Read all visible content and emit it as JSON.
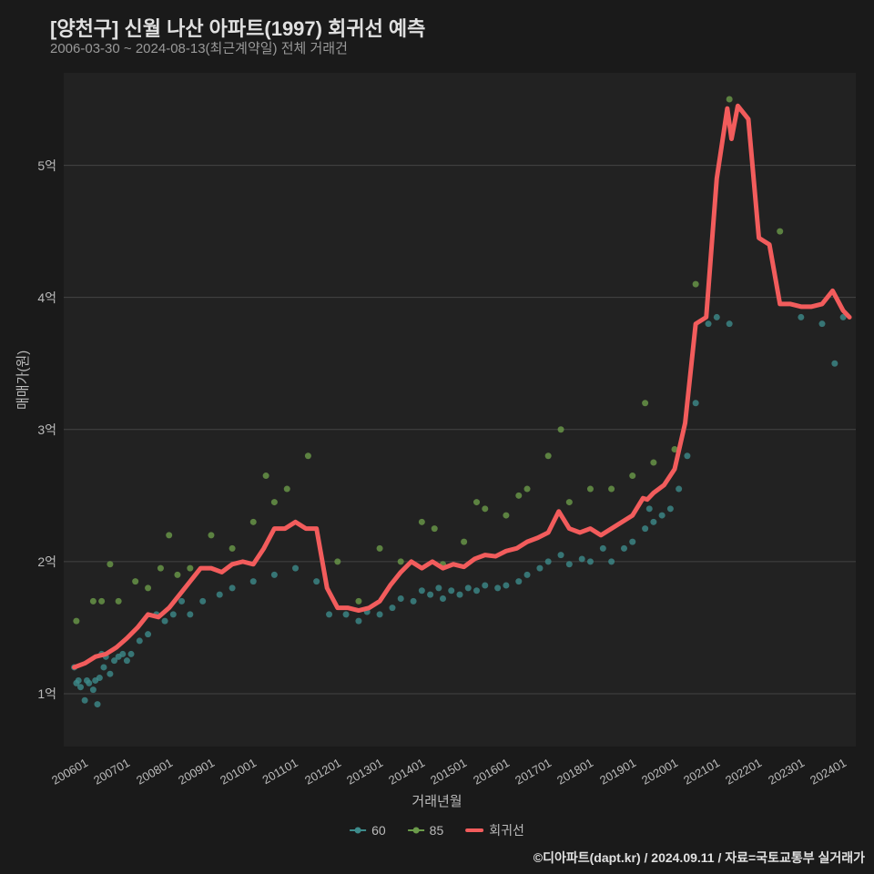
{
  "title": "[양천구] 신월 나산 아파트(1997) 회귀선 예측",
  "subtitle": "2006-03-30 ~ 2024-08-13(최근계약일) 전체 거래건",
  "y_axis_label": "매매가(원)",
  "x_axis_label": "거래년월",
  "credit": "©디아파트(dapt.kr) / 2024.09.11 / 자료=국토교통부 실거래가",
  "chart": {
    "type": "scatter+line",
    "background_color": "#222222",
    "page_background": "#1a1a1a",
    "grid_color": "#444444",
    "text_color": "#bbbbbb",
    "title_fontsize": 22,
    "subtitle_fontsize": 15,
    "label_fontsize": 15,
    "tick_fontsize": 14,
    "x_domain": [
      2006.0,
      2024.8
    ],
    "y_domain": [
      0.6,
      5.7
    ],
    "y_ticks": [
      1,
      2,
      3,
      4,
      5
    ],
    "y_tick_labels": [
      "1억",
      "2억",
      "3억",
      "4억",
      "5억"
    ],
    "x_ticks": [
      2006.0,
      2007.0,
      2008.0,
      2009.0,
      2010.0,
      2011.0,
      2012.0,
      2013.0,
      2014.0,
      2015.0,
      2016.0,
      2017.0,
      2018.0,
      2019.0,
      2020.0,
      2021.0,
      2022.0,
      2023.0,
      2024.0
    ],
    "x_tick_labels": [
      "200601",
      "200701",
      "200801",
      "200901",
      "201001",
      "201101",
      "201201",
      "201301",
      "201401",
      "201501",
      "201601",
      "201701",
      "201801",
      "201901",
      "202001",
      "202101",
      "202201",
      "202301",
      "202401"
    ],
    "series": [
      {
        "name": "60",
        "type": "scatter",
        "color": "#3d8b8b",
        "marker_size": 5,
        "opacity": 0.8,
        "points": [
          [
            2006.25,
            1.2
          ],
          [
            2006.3,
            1.08
          ],
          [
            2006.35,
            1.1
          ],
          [
            2006.4,
            1.05
          ],
          [
            2006.5,
            0.95
          ],
          [
            2006.55,
            1.1
          ],
          [
            2006.6,
            1.08
          ],
          [
            2006.7,
            1.03
          ],
          [
            2006.75,
            1.1
          ],
          [
            2006.8,
            0.92
          ],
          [
            2006.85,
            1.12
          ],
          [
            2006.9,
            1.3
          ],
          [
            2006.95,
            1.2
          ],
          [
            2007.0,
            1.28
          ],
          [
            2007.1,
            1.15
          ],
          [
            2007.2,
            1.25
          ],
          [
            2007.3,
            1.28
          ],
          [
            2007.4,
            1.3
          ],
          [
            2007.5,
            1.25
          ],
          [
            2007.6,
            1.3
          ],
          [
            2007.8,
            1.4
          ],
          [
            2008.0,
            1.45
          ],
          [
            2008.2,
            1.6
          ],
          [
            2008.4,
            1.55
          ],
          [
            2008.6,
            1.6
          ],
          [
            2008.8,
            1.7
          ],
          [
            2009.0,
            1.6
          ],
          [
            2009.3,
            1.7
          ],
          [
            2009.7,
            1.75
          ],
          [
            2010.0,
            1.8
          ],
          [
            2010.5,
            1.85
          ],
          [
            2011.0,
            1.9
          ],
          [
            2011.5,
            1.95
          ],
          [
            2012.0,
            1.85
          ],
          [
            2012.3,
            1.6
          ],
          [
            2012.7,
            1.6
          ],
          [
            2013.0,
            1.55
          ],
          [
            2013.2,
            1.62
          ],
          [
            2013.5,
            1.6
          ],
          [
            2013.8,
            1.65
          ],
          [
            2014.0,
            1.72
          ],
          [
            2014.3,
            1.7
          ],
          [
            2014.5,
            1.78
          ],
          [
            2014.7,
            1.75
          ],
          [
            2014.9,
            1.8
          ],
          [
            2015.0,
            1.72
          ],
          [
            2015.2,
            1.78
          ],
          [
            2015.4,
            1.75
          ],
          [
            2015.6,
            1.8
          ],
          [
            2015.8,
            1.78
          ],
          [
            2016.0,
            1.82
          ],
          [
            2016.3,
            1.8
          ],
          [
            2016.5,
            1.82
          ],
          [
            2016.8,
            1.85
          ],
          [
            2017.0,
            1.9
          ],
          [
            2017.3,
            1.95
          ],
          [
            2017.5,
            2.0
          ],
          [
            2017.8,
            2.05
          ],
          [
            2018.0,
            1.98
          ],
          [
            2018.3,
            2.02
          ],
          [
            2018.5,
            2.0
          ],
          [
            2018.8,
            2.1
          ],
          [
            2019.0,
            2.0
          ],
          [
            2019.3,
            2.1
          ],
          [
            2019.5,
            2.15
          ],
          [
            2019.8,
            2.25
          ],
          [
            2019.9,
            2.4
          ],
          [
            2020.0,
            2.3
          ],
          [
            2020.2,
            2.35
          ],
          [
            2020.4,
            2.4
          ],
          [
            2020.6,
            2.55
          ],
          [
            2020.8,
            2.8
          ],
          [
            2021.0,
            3.2
          ],
          [
            2021.3,
            3.8
          ],
          [
            2021.5,
            3.85
          ],
          [
            2021.8,
            3.8
          ],
          [
            2023.5,
            3.85
          ],
          [
            2024.0,
            3.8
          ],
          [
            2024.3,
            3.5
          ],
          [
            2024.5,
            3.85
          ]
        ]
      },
      {
        "name": "85",
        "type": "scatter",
        "color": "#6b9b4a",
        "marker_size": 5,
        "opacity": 0.8,
        "points": [
          [
            2006.3,
            1.55
          ],
          [
            2006.7,
            1.7
          ],
          [
            2006.9,
            1.7
          ],
          [
            2007.1,
            1.98
          ],
          [
            2007.3,
            1.7
          ],
          [
            2007.7,
            1.85
          ],
          [
            2008.0,
            1.8
          ],
          [
            2008.3,
            1.95
          ],
          [
            2008.5,
            2.2
          ],
          [
            2008.7,
            1.9
          ],
          [
            2009.0,
            1.95
          ],
          [
            2009.5,
            2.2
          ],
          [
            2010.0,
            2.1
          ],
          [
            2010.5,
            2.3
          ],
          [
            2010.8,
            2.65
          ],
          [
            2011.0,
            2.45
          ],
          [
            2011.3,
            2.55
          ],
          [
            2011.8,
            2.8
          ],
          [
            2012.5,
            2.0
          ],
          [
            2013.0,
            1.7
          ],
          [
            2013.5,
            2.1
          ],
          [
            2014.0,
            2.0
          ],
          [
            2014.5,
            2.3
          ],
          [
            2014.8,
            2.25
          ],
          [
            2015.0,
            1.98
          ],
          [
            2015.5,
            2.15
          ],
          [
            2015.8,
            2.45
          ],
          [
            2016.0,
            2.4
          ],
          [
            2016.5,
            2.35
          ],
          [
            2016.8,
            2.5
          ],
          [
            2017.0,
            2.55
          ],
          [
            2017.5,
            2.8
          ],
          [
            2017.8,
            3.0
          ],
          [
            2018.0,
            2.45
          ],
          [
            2018.5,
            2.55
          ],
          [
            2019.0,
            2.55
          ],
          [
            2019.5,
            2.65
          ],
          [
            2019.8,
            3.2
          ],
          [
            2020.0,
            2.75
          ],
          [
            2020.5,
            2.85
          ],
          [
            2021.0,
            4.1
          ],
          [
            2021.8,
            5.5
          ],
          [
            2023.0,
            4.5
          ]
        ]
      },
      {
        "name": "회귀선",
        "type": "line",
        "color": "#f25c5c",
        "line_width": 5,
        "points": [
          [
            2006.25,
            1.2
          ],
          [
            2006.5,
            1.23
          ],
          [
            2006.75,
            1.28
          ],
          [
            2007.0,
            1.3
          ],
          [
            2007.25,
            1.35
          ],
          [
            2007.5,
            1.42
          ],
          [
            2007.75,
            1.5
          ],
          [
            2008.0,
            1.6
          ],
          [
            2008.25,
            1.58
          ],
          [
            2008.5,
            1.65
          ],
          [
            2008.75,
            1.75
          ],
          [
            2009.0,
            1.85
          ],
          [
            2009.25,
            1.95
          ],
          [
            2009.5,
            1.95
          ],
          [
            2009.75,
            1.92
          ],
          [
            2010.0,
            1.98
          ],
          [
            2010.25,
            2.0
          ],
          [
            2010.5,
            1.98
          ],
          [
            2010.75,
            2.1
          ],
          [
            2011.0,
            2.25
          ],
          [
            2011.25,
            2.25
          ],
          [
            2011.5,
            2.3
          ],
          [
            2011.75,
            2.25
          ],
          [
            2012.0,
            2.25
          ],
          [
            2012.25,
            1.8
          ],
          [
            2012.5,
            1.65
          ],
          [
            2012.75,
            1.65
          ],
          [
            2013.0,
            1.63
          ],
          [
            2013.25,
            1.65
          ],
          [
            2013.5,
            1.7
          ],
          [
            2013.75,
            1.82
          ],
          [
            2014.0,
            1.92
          ],
          [
            2014.25,
            2.0
          ],
          [
            2014.5,
            1.95
          ],
          [
            2014.75,
            2.0
          ],
          [
            2015.0,
            1.95
          ],
          [
            2015.25,
            1.98
          ],
          [
            2015.5,
            1.96
          ],
          [
            2015.75,
            2.02
          ],
          [
            2016.0,
            2.05
          ],
          [
            2016.25,
            2.04
          ],
          [
            2016.5,
            2.08
          ],
          [
            2016.75,
            2.1
          ],
          [
            2017.0,
            2.15
          ],
          [
            2017.25,
            2.18
          ],
          [
            2017.5,
            2.22
          ],
          [
            2017.75,
            2.38
          ],
          [
            2018.0,
            2.25
          ],
          [
            2018.25,
            2.22
          ],
          [
            2018.5,
            2.25
          ],
          [
            2018.75,
            2.2
          ],
          [
            2019.0,
            2.25
          ],
          [
            2019.25,
            2.3
          ],
          [
            2019.5,
            2.35
          ],
          [
            2019.75,
            2.48
          ],
          [
            2019.85,
            2.47
          ],
          [
            2020.0,
            2.52
          ],
          [
            2020.25,
            2.58
          ],
          [
            2020.5,
            2.7
          ],
          [
            2020.75,
            3.05
          ],
          [
            2021.0,
            3.8
          ],
          [
            2021.25,
            3.85
          ],
          [
            2021.5,
            4.9
          ],
          [
            2021.75,
            5.43
          ],
          [
            2021.85,
            5.2
          ],
          [
            2022.0,
            5.45
          ],
          [
            2022.25,
            5.35
          ],
          [
            2022.5,
            4.45
          ],
          [
            2022.75,
            4.4
          ],
          [
            2023.0,
            3.95
          ],
          [
            2023.25,
            3.95
          ],
          [
            2023.5,
            3.93
          ],
          [
            2023.75,
            3.93
          ],
          [
            2024.0,
            3.95
          ],
          [
            2024.25,
            4.05
          ],
          [
            2024.5,
            3.9
          ],
          [
            2024.65,
            3.85
          ]
        ]
      }
    ],
    "legend": [
      {
        "label": "60",
        "type": "dot",
        "color": "#3d8b8b"
      },
      {
        "label": "85",
        "type": "dot",
        "color": "#6b9b4a"
      },
      {
        "label": "회귀선",
        "type": "line",
        "color": "#f25c5c"
      }
    ]
  }
}
